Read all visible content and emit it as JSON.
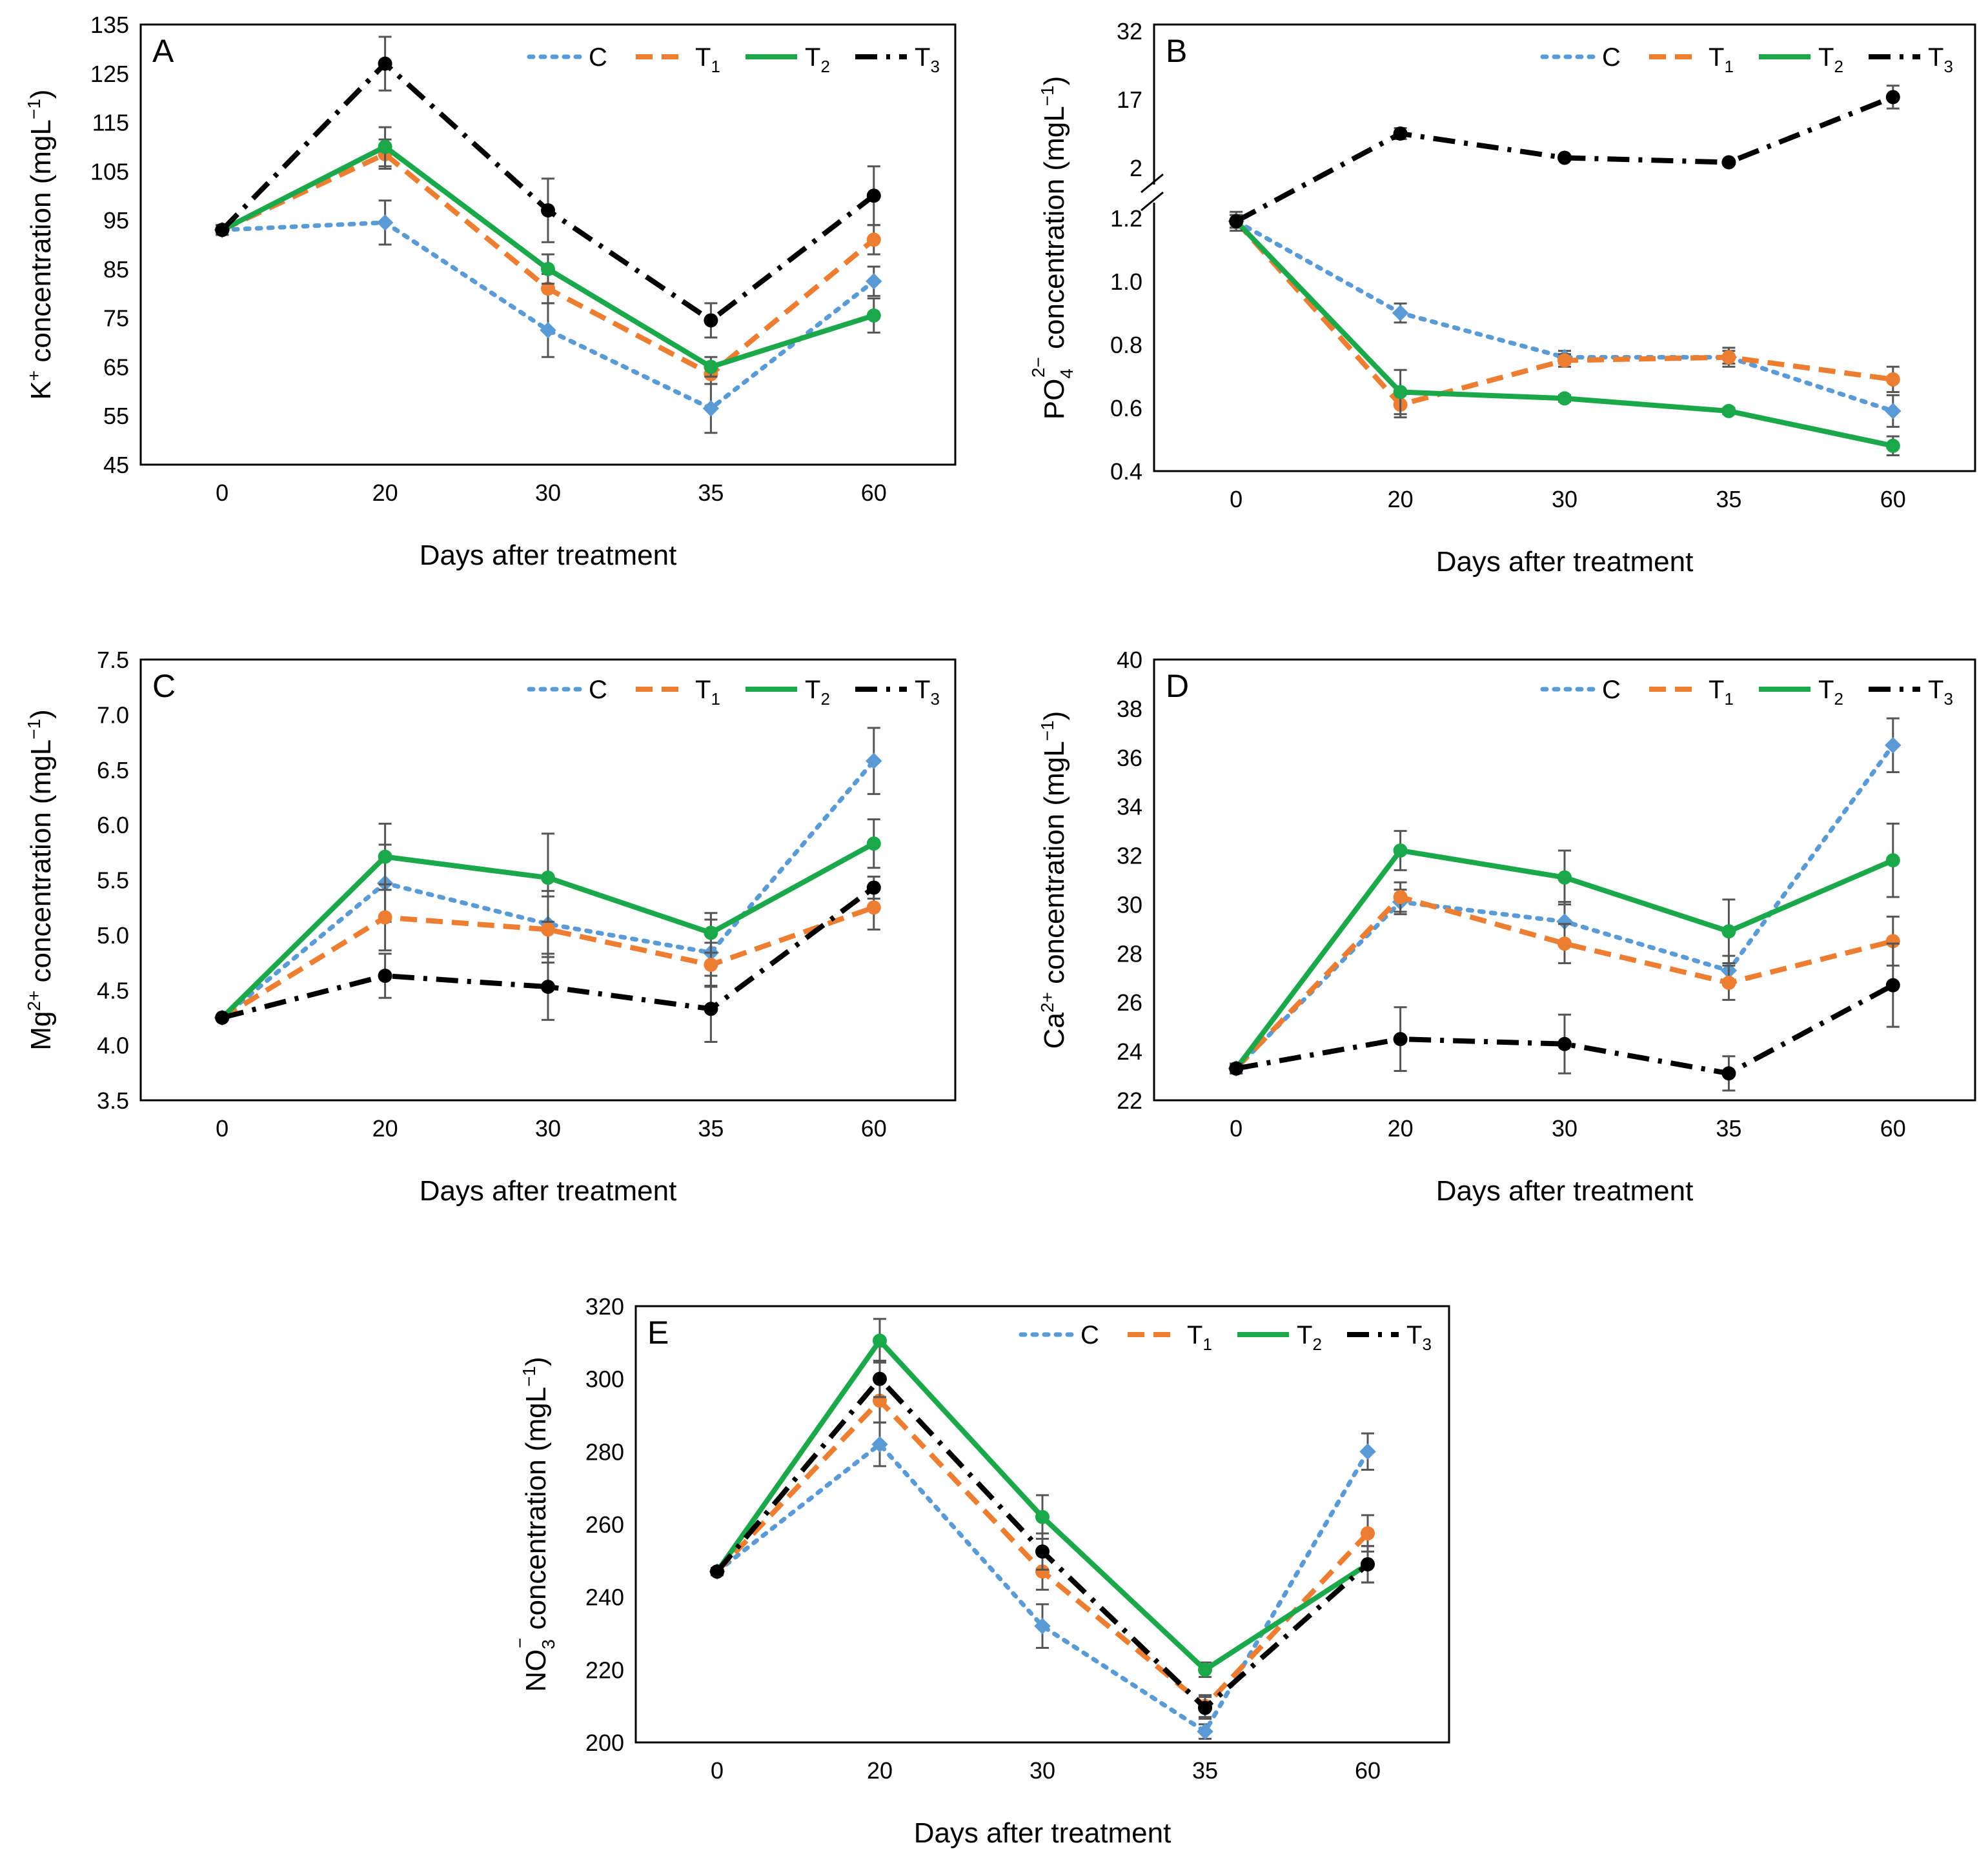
{
  "figure": {
    "series_names": [
      "C",
      "T1",
      "T2",
      "T3"
    ],
    "series_colors": [
      "#5b9bd5",
      "#ed7d31",
      "#1aa84b",
      "#000000"
    ],
    "legend": [
      {
        "base": "C",
        "sub": ""
      },
      {
        "base": "T",
        "sub": "1"
      },
      {
        "base": "T",
        "sub": "2"
      },
      {
        "base": "T",
        "sub": "3"
      }
    ]
  },
  "chart_data": [
    {
      "type": "line",
      "panel": "A",
      "xlabel": "Days after treatment",
      "ylabel": "K⁺ concentration (mgL⁻¹)",
      "categories": [
        "0",
        "20",
        "30",
        "35",
        "60"
      ],
      "yticks": [
        "45",
        "55",
        "65",
        "75",
        "85",
        "95",
        "105",
        "115",
        "125",
        "135"
      ],
      "ylim": [
        45,
        135
      ],
      "series": [
        {
          "name": "C",
          "values": [
            93,
            94.5,
            72.5,
            56.5,
            82.5
          ],
          "errors": [
            1,
            4.5,
            5.5,
            5,
            3
          ]
        },
        {
          "name": "T1",
          "values": [
            93,
            108.5,
            81,
            63.5,
            91
          ],
          "errors": [
            1,
            3,
            3,
            2,
            3
          ]
        },
        {
          "name": "T2",
          "values": [
            93,
            110,
            85,
            65,
            75.5
          ],
          "errors": [
            1,
            4,
            3,
            2,
            3.5
          ]
        },
        {
          "name": "T3",
          "values": [
            93,
            127,
            97,
            74.5,
            100
          ],
          "errors": [
            1,
            5.5,
            6.5,
            3.5,
            6
          ]
        }
      ]
    },
    {
      "type": "line",
      "panel": "B",
      "xlabel": "Days after treatment",
      "ylabel": "PO₄²⁻ concentration (mgL⁻¹)",
      "categories": [
        "0",
        "20",
        "30",
        "35",
        "60"
      ],
      "yticks": [
        "0.4",
        "0.6",
        "0.8",
        "1.0",
        "1.2"
      ],
      "yticks_upper": [
        "2",
        "17",
        "32"
      ],
      "ylim": [
        0.4,
        1.2
      ],
      "ylim_upper": [
        2,
        32
      ],
      "axis_break": true,
      "series": [
        {
          "name": "C",
          "values": [
            1.19,
            0.9,
            0.76,
            0.76,
            0.59
          ],
          "errors": [
            0.02,
            0.03,
            0.02,
            0.02,
            0.05
          ]
        },
        {
          "name": "T1",
          "values": [
            1.19,
            0.61,
            0.75,
            0.76,
            0.69
          ],
          "errors": [
            0.02,
            0.04,
            0.02,
            0.03,
            0.04
          ]
        },
        {
          "name": "T2",
          "values": [
            1.19,
            0.65,
            0.63,
            0.59,
            0.48
          ],
          "errors": [
            0.02,
            0.07,
            0.01,
            0.01,
            0.03
          ]
        },
        {
          "name": "T3",
          "values": [
            1.19,
            9.5,
            4.2,
            3.2,
            17.5
          ],
          "errors": [
            0.03,
            1.2,
            0.5,
            0.3,
            2.5
          ]
        }
      ]
    },
    {
      "type": "line",
      "panel": "C",
      "xlabel": "Days after treatment",
      "ylabel": "Mg²⁺ concentration (mgL⁻¹)",
      "categories": [
        "0",
        "20",
        "30",
        "35",
        "60"
      ],
      "yticks": [
        "3.5",
        "4.0",
        "4.5",
        "5.0",
        "5.5",
        "6.0",
        "6.5",
        "7.0",
        "7.5"
      ],
      "ylim": [
        3.5,
        7.5
      ],
      "series": [
        {
          "name": "C",
          "values": [
            4.25,
            5.47,
            5.1,
            4.84,
            6.58
          ],
          "errors": [
            0.02,
            0.35,
            0.3,
            0.3,
            0.3
          ]
        },
        {
          "name": "T1",
          "values": [
            4.25,
            5.16,
            5.05,
            4.73,
            5.25
          ],
          "errors": [
            0.02,
            0.3,
            0.3,
            0.2,
            0.2
          ]
        },
        {
          "name": "T2",
          "values": [
            4.25,
            5.71,
            5.52,
            5.02,
            5.83
          ],
          "errors": [
            0.02,
            0.3,
            0.4,
            0.18,
            0.22
          ]
        },
        {
          "name": "T3",
          "values": [
            4.25,
            4.63,
            4.53,
            4.33,
            5.43
          ],
          "errors": [
            0.02,
            0.2,
            0.3,
            0.3,
            0.1
          ]
        }
      ]
    },
    {
      "type": "line",
      "panel": "D",
      "xlabel": "Days after treatment",
      "ylabel": "Ca²⁺ concentration (mgL⁻¹)",
      "categories": [
        "0",
        "20",
        "30",
        "35",
        "60"
      ],
      "yticks": [
        "22",
        "24",
        "26",
        "28",
        "30",
        "32",
        "34",
        "36",
        "38",
        "40"
      ],
      "ylim": [
        22,
        40
      ],
      "series": [
        {
          "name": "C",
          "values": [
            23.3,
            30.1,
            29.3,
            27.3,
            36.5
          ],
          "errors": [
            0.2,
            0.5,
            0.8,
            0.6,
            1.1
          ]
        },
        {
          "name": "T1",
          "values": [
            23.3,
            30.3,
            28.4,
            26.8,
            28.5
          ],
          "errors": [
            0.2,
            0.6,
            0.8,
            0.7,
            1
          ]
        },
        {
          "name": "T2",
          "values": [
            23.3,
            32.2,
            31.1,
            28.9,
            31.8
          ],
          "errors": [
            0.2,
            0.8,
            1.1,
            1.3,
            1.5
          ]
        },
        {
          "name": "T3",
          "values": [
            23.3,
            24.5,
            24.3,
            23.1,
            26.7
          ],
          "errors": [
            0.2,
            1.3,
            1.2,
            0.7,
            1.7
          ]
        }
      ]
    },
    {
      "type": "line",
      "panel": "E",
      "xlabel": "Days after treatment",
      "ylabel": "NO₃⁻ concentration (mgL⁻¹)",
      "categories": [
        "0",
        "20",
        "30",
        "35",
        "60"
      ],
      "yticks": [
        "200",
        "220",
        "240",
        "260",
        "280",
        "300",
        "320"
      ],
      "ylim": [
        200,
        320
      ],
      "series": [
        {
          "name": "C",
          "values": [
            247,
            282,
            232,
            203,
            280
          ],
          "errors": [
            1,
            6,
            6,
            2,
            5
          ]
        },
        {
          "name": "T1",
          "values": [
            247,
            294,
            247,
            210,
            257.5
          ],
          "errors": [
            1,
            6,
            5,
            3,
            5
          ]
        },
        {
          "name": "T2",
          "values": [
            247,
            310.5,
            262,
            220,
            249
          ],
          "errors": [
            1,
            6,
            6,
            2,
            5
          ]
        },
        {
          "name": "T3",
          "values": [
            247,
            300,
            252.5,
            209.5,
            249
          ],
          "errors": [
            1,
            5,
            5,
            3,
            5
          ]
        }
      ]
    }
  ]
}
